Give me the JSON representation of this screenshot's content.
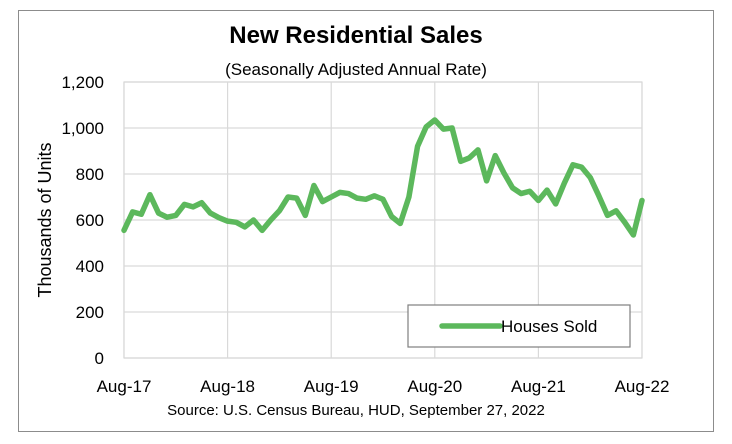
{
  "chart_data": {
    "type": "line",
    "title": "New Residential Sales",
    "subtitle": "(Seasonally Adjusted Annual Rate)",
    "ylabel": "Thousands of Units",
    "xlabel": "",
    "source": "Source:  U.S. Census Bureau, HUD, September 27, 2022",
    "ylim": [
      0,
      1200
    ],
    "y_ticks": [
      0,
      200,
      400,
      600,
      800,
      1000,
      1200
    ],
    "y_tick_labels": [
      "0",
      "200",
      "400",
      "600",
      "800",
      "1,000",
      "1,200"
    ],
    "x_tick_labels": [
      "Aug-17",
      "Aug-18",
      "Aug-19",
      "Aug-20",
      "Aug-21",
      "Aug-22"
    ],
    "x_tick_index": [
      0,
      12,
      24,
      36,
      48,
      60
    ],
    "grid": "vertical and horizontal",
    "legend_position": "bottom-right",
    "series": [
      {
        "name": "Houses Sold",
        "color": "#5cb85c",
        "values": [
          555,
          635,
          625,
          710,
          630,
          612,
          620,
          668,
          657,
          675,
          630,
          610,
          595,
          590,
          570,
          600,
          555,
          600,
          640,
          700,
          695,
          620,
          750,
          680,
          700,
          720,
          715,
          695,
          690,
          705,
          690,
          615,
          585,
          700,
          920,
          1005,
          1035,
          995,
          1000,
          855,
          870,
          905,
          770,
          880,
          805,
          740,
          715,
          725,
          685,
          730,
          670,
          760,
          840,
          830,
          785,
          705,
          620,
          640,
          590,
          535,
          685
        ]
      }
    ]
  }
}
